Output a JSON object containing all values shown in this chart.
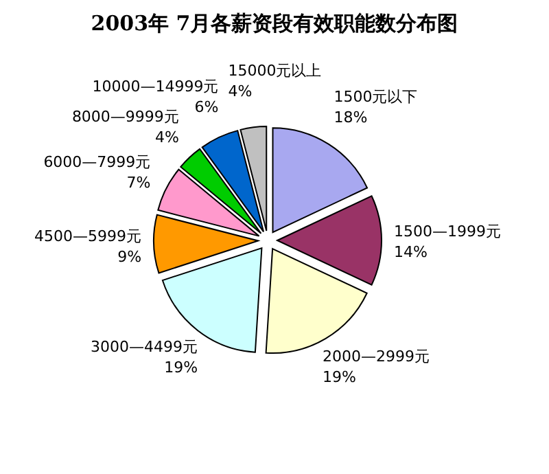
{
  "chart_data": {
    "type": "pie",
    "title": "2003年 7月各薪资段有效职能数分布图",
    "categories": [
      "1500元以下",
      "1500—1999元",
      "2000—2999元",
      "3000—4499元",
      "4500—5999元",
      "6000—7999元",
      "8000—9999元",
      "10000—14999元",
      "15000元以上"
    ],
    "values": [
      18,
      14,
      19,
      19,
      9,
      7,
      4,
      6,
      4
    ],
    "value_labels": [
      "18%",
      "14%",
      "19%",
      "19%",
      "9%",
      "7%",
      "4%",
      "6%",
      "4%"
    ],
    "colors": [
      "#a8a8f0",
      "#993366",
      "#ffffcc",
      "#ccffff",
      "#ff9900",
      "#ff99cc",
      "#00cc00",
      "#0066cc",
      "#c0c0c0"
    ]
  }
}
